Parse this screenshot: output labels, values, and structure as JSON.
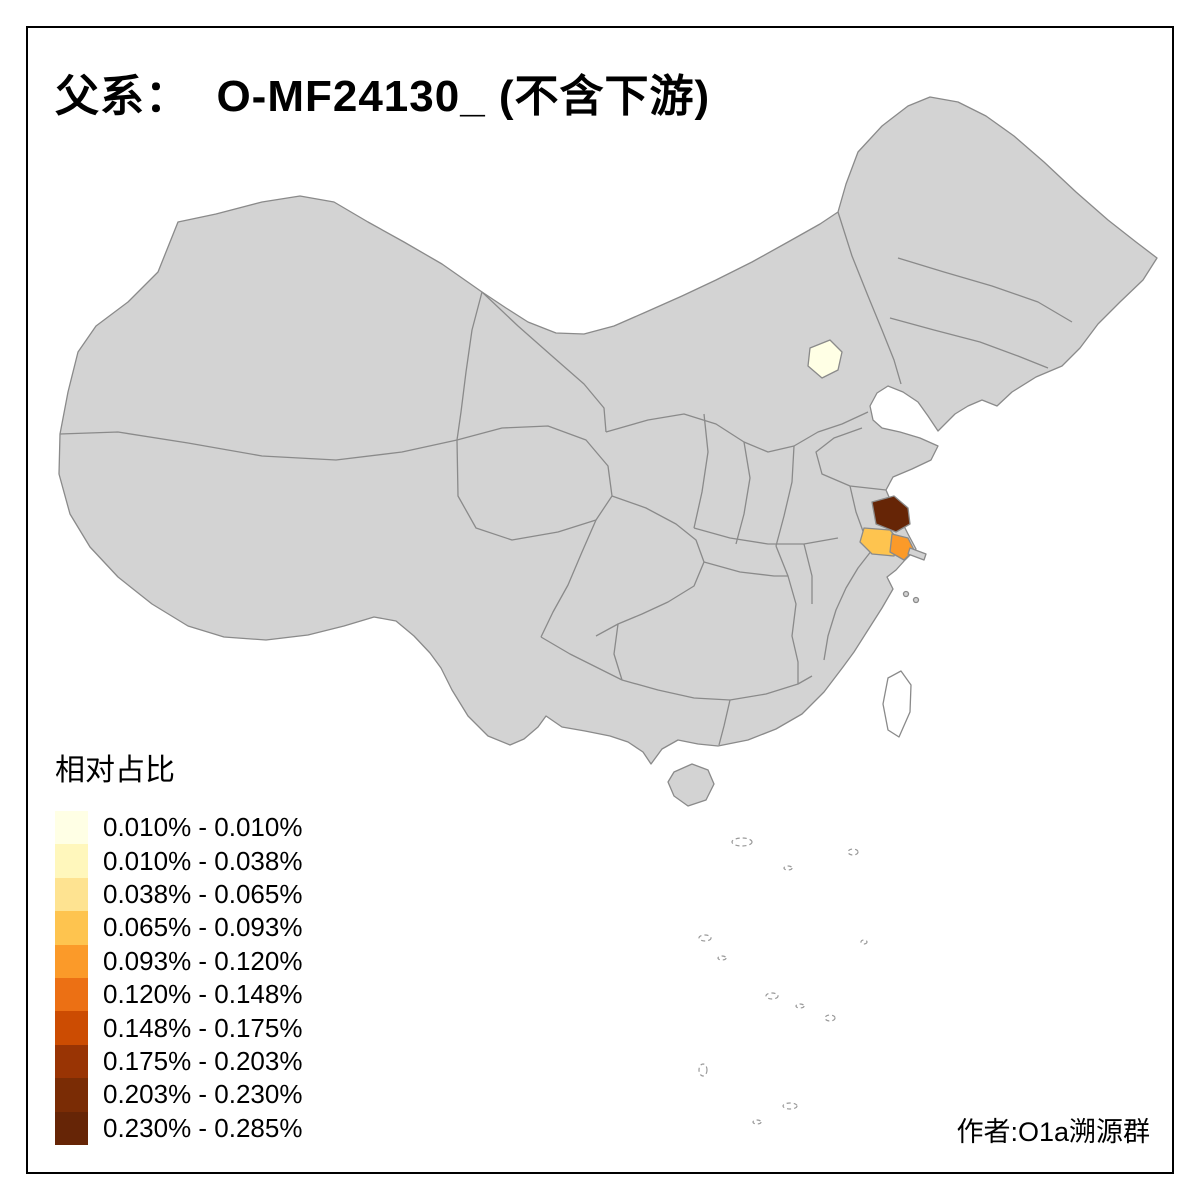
{
  "title": "父系：  O-MF24130_ (不含下游)",
  "legend": {
    "title": "相对占比",
    "entries": [
      {
        "label": "0.010% - 0.010%",
        "color": "#FFFFE5"
      },
      {
        "label": "0.010% - 0.038%",
        "color": "#FFF7BC"
      },
      {
        "label": "0.038% - 0.065%",
        "color": "#FEE391"
      },
      {
        "label": "0.065% - 0.093%",
        "color": "#FEC44F"
      },
      {
        "label": "0.093% - 0.120%",
        "color": "#FB9A29"
      },
      {
        "label": "0.120% - 0.148%",
        "color": "#EC7014"
      },
      {
        "label": "0.148% - 0.175%",
        "color": "#CC4C02"
      },
      {
        "label": "0.175% - 0.203%",
        "color": "#993404"
      },
      {
        "label": "0.203% - 0.230%",
        "color": "#7A2C05"
      },
      {
        "label": "0.230% - 0.285%",
        "color": "#662506"
      }
    ]
  },
  "attribution": "作者:O1a溯源群",
  "map": {
    "base_fill": "#D3D3D3",
    "border_color": "#8A8A8A",
    "island_fill": "#FFFFFF",
    "dashed_island_color": "#999999",
    "background": "#FFFFFF",
    "frame_color": "#000000",
    "highlights": [
      {
        "area": "north region",
        "bin_index": 0
      },
      {
        "area": "east coast region (dark)",
        "bin_index": 9
      },
      {
        "area": "east coast region (light orange)",
        "bin_index": 3
      },
      {
        "area": "east coast region (orange)",
        "bin_index": 4
      }
    ]
  }
}
